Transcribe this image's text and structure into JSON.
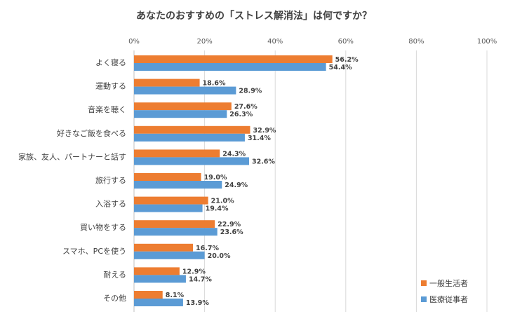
{
  "colors": {
    "series1": "#ED7D31",
    "series2": "#5B9BD5",
    "grid": "#D9D9D9",
    "axis": "#BFBFBF"
  },
  "chart_data": {
    "type": "bar",
    "orientation": "horizontal",
    "title": "あなたのおすすめの「ストレス解消法」は何ですか？",
    "xlim": [
      0,
      100
    ],
    "xticks": [
      "0%",
      "20%",
      "40%",
      "60%",
      "80%",
      "100%"
    ],
    "xtick_values": [
      0,
      20,
      40,
      60,
      80,
      100
    ],
    "gridlines": true,
    "legend_position": "bottom-right",
    "categories": [
      "よく寝る",
      "運動する",
      "音楽を聴く",
      "好きなご飯を食べる",
      "家族、友人、パートナーと話す",
      "旅行する",
      "入浴する",
      "買い物をする",
      "スマホ、PCを使う",
      "耐える",
      "その他"
    ],
    "series": [
      {
        "name": "一般生活者",
        "values": [
          56.2,
          18.6,
          27.6,
          32.9,
          24.3,
          19.0,
          21.0,
          22.9,
          16.7,
          12.9,
          8.1
        ],
        "labels": [
          "56.2%",
          "18.6%",
          "27.6%",
          "32.9%",
          "24.3%",
          "19.0%",
          "21.0%",
          "22.9%",
          "16.7%",
          "12.9%",
          "8.1%"
        ]
      },
      {
        "name": "医療従事者",
        "values": [
          54.4,
          28.9,
          26.3,
          31.4,
          32.6,
          24.9,
          19.4,
          23.6,
          20.0,
          14.7,
          13.9
        ],
        "labels": [
          "54.4%",
          "28.9%",
          "26.3%",
          "31.4%",
          "32.6%",
          "24.9%",
          "19.4%",
          "23.6%",
          "20.0%",
          "14.7%",
          "13.9%"
        ]
      }
    ]
  }
}
